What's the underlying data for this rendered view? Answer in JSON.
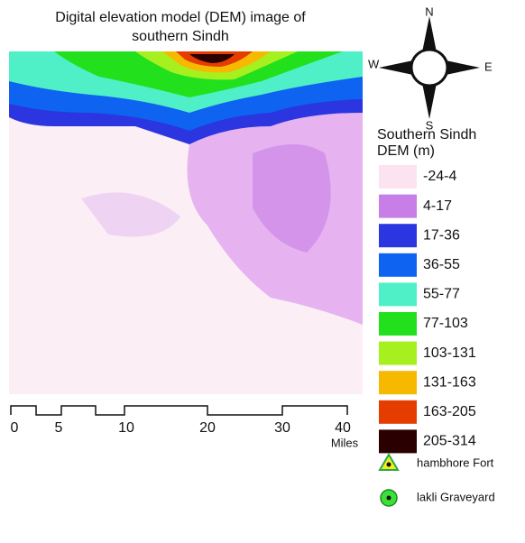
{
  "title": [
    "Digital elevation model (DEM) image of",
    "southern Sindh"
  ],
  "compass": {
    "north": "N",
    "south": "S",
    "east": "E",
    "west": "W"
  },
  "legend": {
    "title": [
      "Southern Sindh",
      "DEM (m)"
    ],
    "classes": [
      {
        "label": "-24-4",
        "color": "#fbe4ef"
      },
      {
        "label": "4-17",
        "color": "#c77ee6"
      },
      {
        "label": "17-36",
        "color": "#2b35e0"
      },
      {
        "label": "36-55",
        "color": "#0e63f0"
      },
      {
        "label": "55-77",
        "color": "#4ff0c8"
      },
      {
        "label": "77-103",
        "color": "#22e01c"
      },
      {
        "label": "103-131",
        "color": "#a6f020"
      },
      {
        "label": "131-163",
        "color": "#f7b800"
      },
      {
        "label": "163-205",
        "color": "#e53d00"
      },
      {
        "label": "205-314",
        "color": "#2a0000"
      }
    ],
    "markers": [
      "hambhore Fort",
      "lakli Graveyard"
    ]
  },
  "scale_bar": {
    "labels": [
      "0",
      "5",
      "10",
      "20",
      "30",
      "40"
    ],
    "unit": "Miles"
  }
}
